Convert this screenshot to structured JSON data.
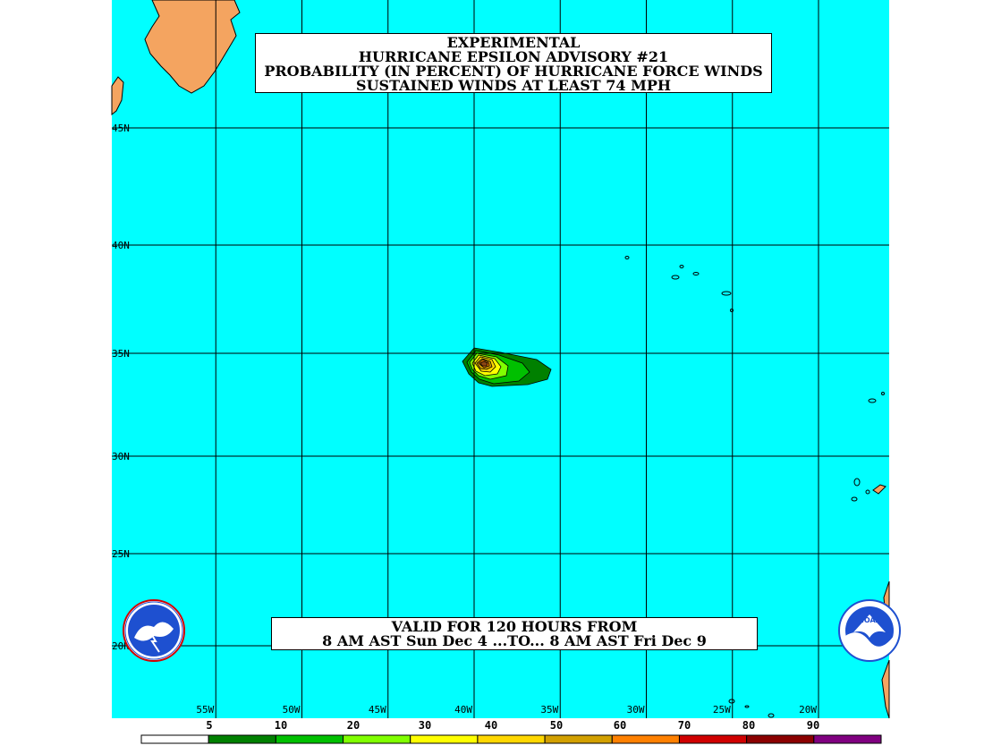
{
  "title": {
    "lines": [
      "EXPERIMENTAL",
      "HURRICANE EPSILON ADVISORY #21",
      "PROBABILITY (IN PERCENT) OF HURRICANE FORCE WINDS",
      "SUSTAINED WINDS AT LEAST 74 MPH"
    ]
  },
  "valid": {
    "lines": [
      "VALID FOR 120 HOURS FROM",
      "8 AM AST Sun Dec 4 ...TO... 8 AM AST Fri Dec 9"
    ]
  },
  "map": {
    "ocean_color": "#00ffff",
    "land_color": "#f4a460",
    "grid_color": "#000000",
    "lat_labels": [
      {
        "text": "45N",
        "value": 45
      },
      {
        "text": "40N",
        "value": 40
      },
      {
        "text": "35N",
        "value": 35
      },
      {
        "text": "30N",
        "value": 30
      },
      {
        "text": "25N",
        "value": 25
      },
      {
        "text": "20N",
        "value": 20
      }
    ],
    "lon_labels": [
      {
        "text": "55W",
        "value": -55
      },
      {
        "text": "50W",
        "value": -50
      },
      {
        "text": "45W",
        "value": -45
      },
      {
        "text": "40W",
        "value": -40
      },
      {
        "text": "35W",
        "value": -35
      },
      {
        "text": "30W",
        "value": -30
      },
      {
        "text": "25W",
        "value": -25
      },
      {
        "text": "20W",
        "value": -20
      }
    ]
  },
  "legend": {
    "labels": [
      "5",
      "10",
      "20",
      "30",
      "40",
      "50",
      "60",
      "70",
      "80",
      "90"
    ],
    "colors": [
      "#ffffff",
      "#008000",
      "#00c000",
      "#80ff00",
      "#ffff00",
      "#ffd700",
      "#d2a000",
      "#ff8000",
      "#d00000",
      "#8b0000",
      "#800080"
    ]
  },
  "logos": {
    "nws_icon": "nws-logo-icon",
    "noaa_icon": "noaa-logo-icon",
    "noaa_text": "NOAA"
  }
}
